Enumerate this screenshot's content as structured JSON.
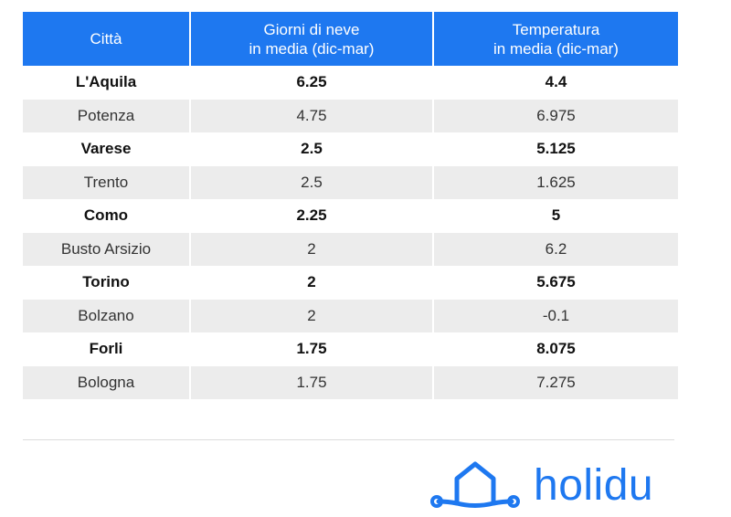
{
  "table": {
    "headers": {
      "city": "Città",
      "snow_line1": "Giorni di neve",
      "snow_line2": "in media (dic-mar)",
      "temp_line1": "Temperatura",
      "temp_line2": "in media (dic-mar)"
    },
    "rows": [
      {
        "city": "L'Aquila",
        "snow": "6.25",
        "temp": "4.4"
      },
      {
        "city": "Potenza",
        "snow": "4.75",
        "temp": "6.975"
      },
      {
        "city": "Varese",
        "snow": "2.5",
        "temp": "5.125"
      },
      {
        "city": "Trento",
        "snow": "2.5",
        "temp": "1.625"
      },
      {
        "city": "Como",
        "snow": "2.25",
        "temp": "5"
      },
      {
        "city": "Busto Arsizio",
        "snow": "2",
        "temp": "6.2"
      },
      {
        "city": "Torino",
        "snow": "2",
        "temp": "5.675"
      },
      {
        "city": "Bolzano",
        "snow": "2",
        "temp": "-0.1"
      },
      {
        "city": "Forli",
        "snow": "1.75",
        "temp": "8.075"
      },
      {
        "city": "Bologna",
        "snow": "1.75",
        "temp": "7.275"
      }
    ]
  },
  "chart_data": {
    "type": "table",
    "columns": [
      "Città",
      "Giorni di neve in media (dic-mar)",
      "Temperatura in media (dic-mar)"
    ],
    "rows": [
      [
        "L'Aquila",
        6.25,
        4.4
      ],
      [
        "Potenza",
        4.75,
        6.975
      ],
      [
        "Varese",
        2.5,
        5.125
      ],
      [
        "Trento",
        2.5,
        1.625
      ],
      [
        "Como",
        2.25,
        5
      ],
      [
        "Busto Arsizio",
        2,
        6.2
      ],
      [
        "Torino",
        2,
        5.675
      ],
      [
        "Bolzano",
        2,
        -0.1
      ],
      [
        "Forli",
        1.75,
        8.075
      ],
      [
        "Bologna",
        1.75,
        7.275
      ]
    ]
  },
  "logo": {
    "text": "holidu",
    "icon": "house-icon"
  },
  "colors": {
    "accent": "#1e78f0",
    "row_alt": "#ececec"
  }
}
